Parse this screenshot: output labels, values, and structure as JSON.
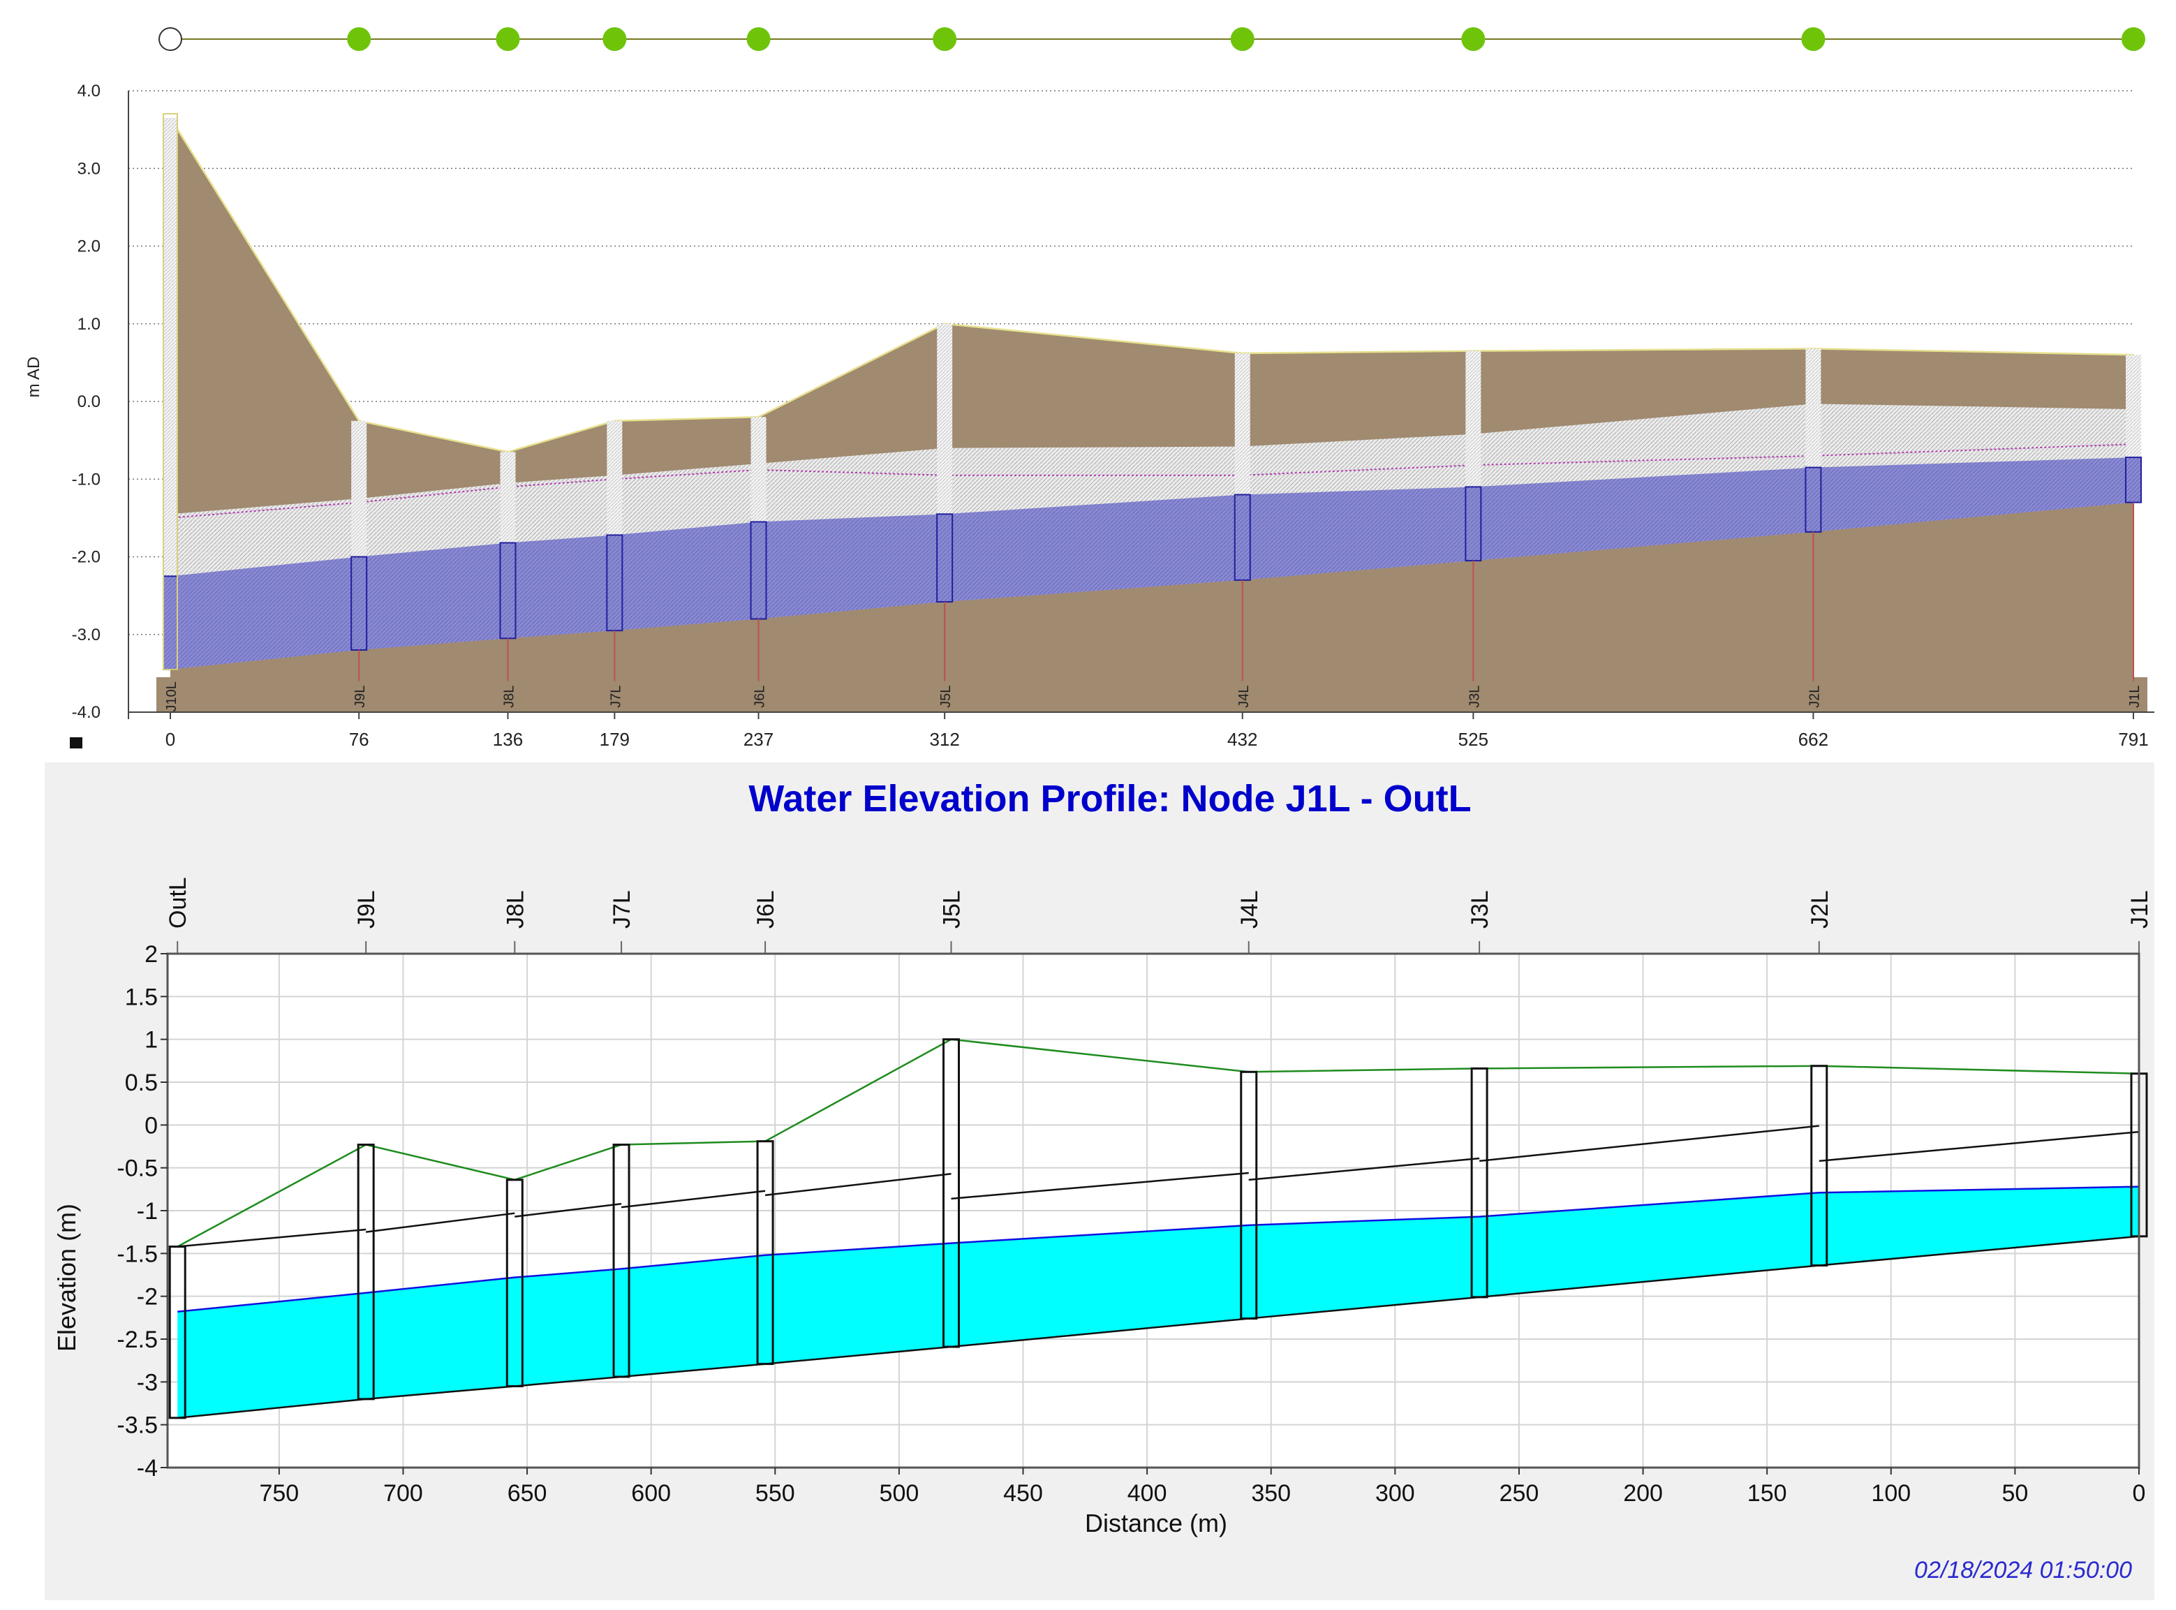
{
  "colors": {
    "ground": "#a08a70",
    "pipe_bg": "#e8e8e8",
    "water_top": "#8f8fd6",
    "node_green": "#6fc40a",
    "bottom_panel_bg": "#f0f0f0",
    "water_fill": "#00ffff",
    "ground_line": "#1e8c1e",
    "water_line": "#1010e0",
    "title_color": "#0000cc",
    "timestamp_color": "#2a2ad0"
  },
  "chart_data": [
    {
      "type": "area",
      "ylabel": "m AD",
      "xlabel": "",
      "ylim": [
        -4.0,
        4.0
      ],
      "xlim": [
        0,
        791
      ],
      "y_ticks": [
        "4.0",
        "3.0",
        "2.0",
        "1.0",
        "0.0",
        "-1.0",
        "-2.0",
        "-3.0",
        "-4.0"
      ],
      "grid": "horizontal dotted",
      "x_nodes": [
        0,
        76,
        136,
        179,
        237,
        312,
        432,
        525,
        662,
        791
      ],
      "x_tick_labels": [
        "0",
        "76",
        "136",
        "179",
        "237",
        "312",
        "432",
        "525",
        "662",
        "791"
      ],
      "node_labels": [
        "J10L",
        "J9L",
        "J8L",
        "J7L",
        "J6L",
        "J5L",
        "J4L",
        "J3L",
        "J2L",
        "J1L"
      ],
      "ground": [
        3.65,
        -0.25,
        -0.65,
        -0.25,
        -0.2,
        1.0,
        0.62,
        0.65,
        0.68,
        0.6
      ],
      "pipe_top": [
        -1.45,
        -1.25,
        -1.05,
        -0.95,
        -0.8,
        -0.6,
        -0.58,
        -0.42,
        -0.03,
        -0.1
      ],
      "water": [
        -2.25,
        -2.0,
        -1.82,
        -1.72,
        -1.55,
        -1.45,
        -1.2,
        -1.1,
        -0.85,
        -0.72
      ],
      "invert": [
        -3.45,
        -3.2,
        -3.05,
        -2.95,
        -2.8,
        -2.58,
        -2.3,
        -2.05,
        -1.68,
        -1.3
      ],
      "hydraulic_line": [
        -1.5,
        -1.3,
        -1.1,
        -1.0,
        -0.88,
        -0.95,
        -0.95,
        -0.82,
        -0.7,
        -0.55
      ],
      "node_markers": [
        "open",
        "filled",
        "filled",
        "filled",
        "filled",
        "filled",
        "filled",
        "filled",
        "filled",
        "filled"
      ]
    },
    {
      "type": "area",
      "title": "Water Elevation Profile: Node J1L - OutL",
      "xlabel": "Distance (m)",
      "ylabel": "Elevation (m)",
      "xlim": [
        795,
        0
      ],
      "ylim": [
        -4,
        2
      ],
      "x_ticks": [
        750,
        700,
        650,
        600,
        550,
        500,
        450,
        400,
        350,
        300,
        250,
        200,
        150,
        100,
        50,
        0
      ],
      "y_ticks": [
        2,
        1.5,
        1,
        0.5,
        0,
        -0.5,
        -1,
        -1.5,
        -2,
        -2.5,
        -3,
        -3.5,
        -4
      ],
      "grid": true,
      "node_labels": [
        "OutL",
        "J9L",
        "J8L",
        "J7L",
        "J6L",
        "J5L",
        "J4L",
        "J3L",
        "J2L",
        "J1L"
      ],
      "x": [
        791,
        715,
        655,
        612,
        554,
        479,
        359,
        266,
        129,
        0
      ],
      "ground": [
        -1.42,
        -0.23,
        -0.64,
        -0.23,
        -0.19,
        1.0,
        0.62,
        0.66,
        0.69,
        0.6
      ],
      "pipe_crown_in": [
        -1.42,
        -1.22,
        -1.03,
        -0.92,
        -0.77,
        -0.57,
        -0.56,
        -0.39,
        -0.01,
        -0.08
      ],
      "pipe_crown_out": [
        -1.42,
        -1.25,
        -1.07,
        -0.96,
        -0.82,
        -0.86,
        -0.64,
        -0.42,
        -0.42,
        -0.08
      ],
      "water": [
        -2.18,
        -1.96,
        -1.78,
        -1.68,
        -1.52,
        -1.38,
        -1.17,
        -1.07,
        -0.79,
        -0.72
      ],
      "invert": [
        -3.42,
        -3.2,
        -3.05,
        -2.94,
        -2.79,
        -2.59,
        -2.26,
        -2.01,
        -1.64,
        -1.3
      ],
      "timestamp": "02/18/2024 01:50:00"
    }
  ]
}
